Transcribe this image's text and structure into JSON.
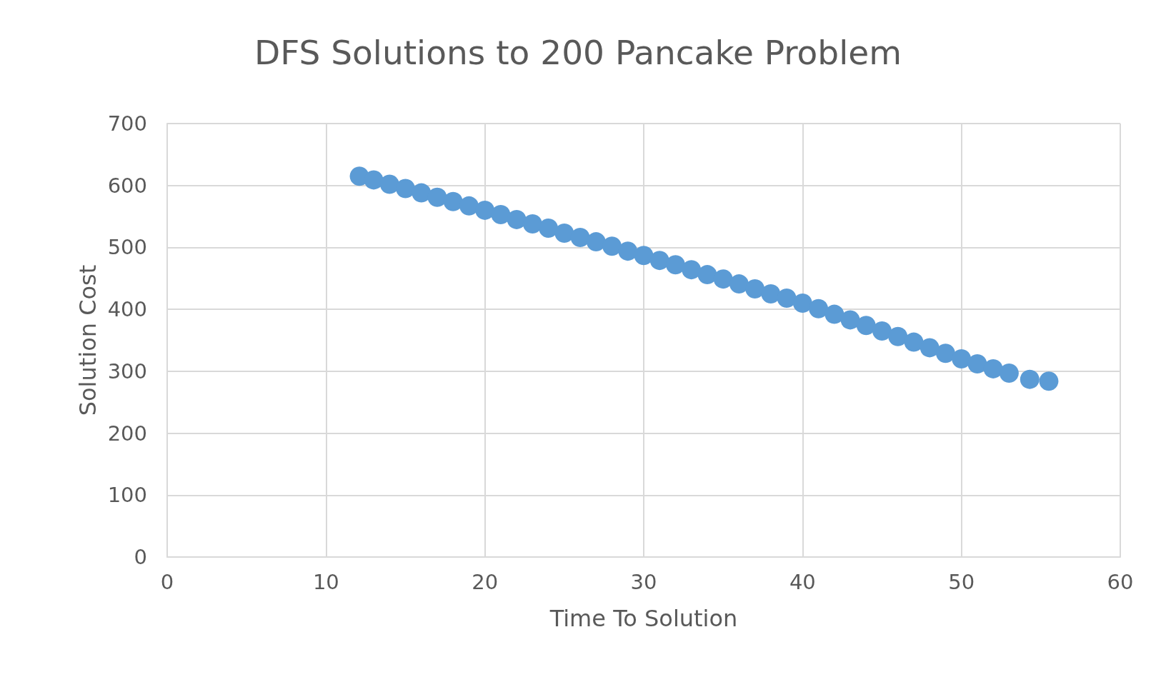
{
  "chart_data": {
    "type": "scatter",
    "title": "DFS Solutions to 200 Pancake Problem",
    "xlabel": "Time To Solution",
    "ylabel": "Solution Cost",
    "series": [
      {
        "color": "#5b9bd5",
        "x": [
          12.1,
          13,
          14,
          15,
          16,
          17,
          18,
          19,
          20,
          21,
          22,
          23,
          24,
          25,
          26,
          27,
          28,
          29,
          30,
          31,
          32,
          33,
          34,
          35,
          36,
          37,
          38,
          39,
          40,
          41,
          42,
          43,
          44,
          45,
          46,
          47,
          48,
          49,
          50,
          51,
          52,
          53,
          54.3,
          55.5
        ],
        "values": [
          615,
          609,
          602,
          595,
          588,
          581,
          574,
          567,
          560,
          553,
          545,
          538,
          531,
          523,
          516,
          509,
          502,
          494,
          487,
          479,
          472,
          464,
          456,
          449,
          441,
          433,
          425,
          418,
          410,
          401,
          392,
          383,
          374,
          365,
          356,
          347,
          338,
          329,
          320,
          312,
          304,
          297,
          287,
          284
        ]
      }
    ],
    "xlim": [
      0,
      60
    ],
    "xticks": [
      0,
      10,
      20,
      30,
      40,
      50,
      60
    ],
    "ylim": [
      0,
      700
    ],
    "yticks": [
      0,
      100,
      200,
      300,
      400,
      500,
      600,
      700
    ],
    "grid": true,
    "marker": "circle"
  }
}
